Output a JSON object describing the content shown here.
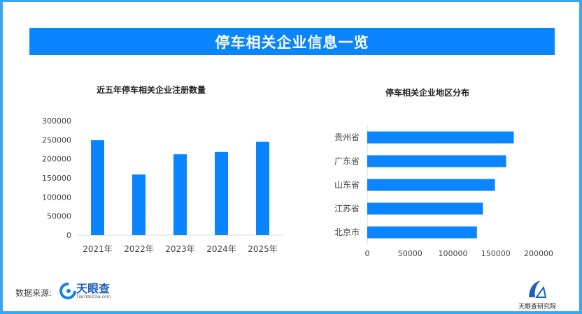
{
  "banner_title": "停车相关企业信息一览",
  "chart_data": [
    {
      "type": "bar",
      "title": "近五年停车相关企业注册数量",
      "categories": [
        "2021年",
        "2022年",
        "2023年",
        "2024年",
        "2025年"
      ],
      "values": [
        249000,
        159000,
        212000,
        218000,
        245000
      ],
      "ylim": [
        0,
        300000
      ],
      "yticks": [
        "0",
        "50000",
        "100000",
        "150000",
        "200000",
        "250000",
        "300000"
      ],
      "grid": false,
      "color": "#0a84ff"
    },
    {
      "type": "bar",
      "orientation": "horizontal",
      "title": "停车相关企业地区分布",
      "categories": [
        "贵州省",
        "广东省",
        "山东省",
        "江苏省",
        "北京市"
      ],
      "values": [
        171000,
        162000,
        149000,
        135000,
        128000
      ],
      "xlim": [
        0,
        200000
      ],
      "xticks": [
        "0",
        "50000",
        "100000",
        "150000",
        "200000"
      ],
      "grid": false,
      "color": "#0a84ff"
    }
  ],
  "footer": {
    "source_label": "数据来源:",
    "source_logo": "天眼查",
    "source_logo_sub": "TianYanCha.com",
    "institute_logo": "天眼查研究院"
  }
}
